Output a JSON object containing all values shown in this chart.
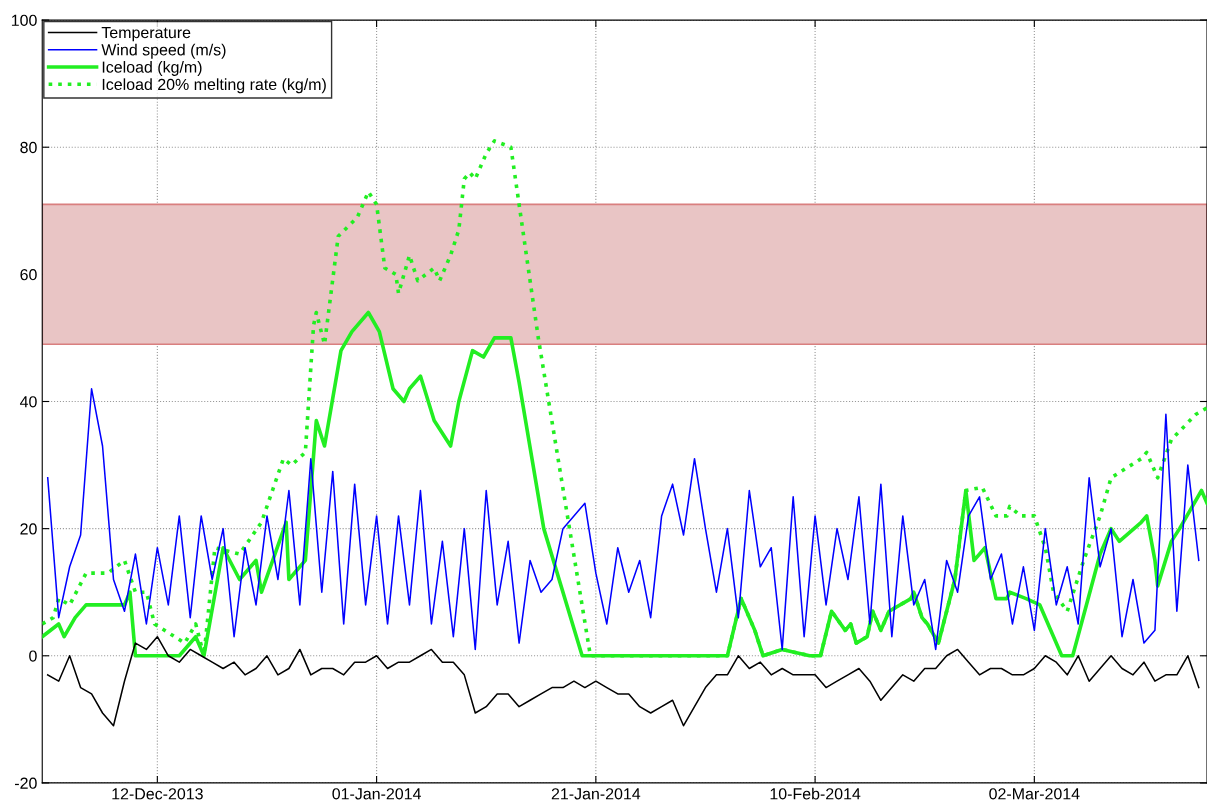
{
  "chart_data": {
    "type": "line",
    "xlim": [
      "2013-12-01T12:00",
      "2014-03-17T18:00"
    ],
    "xticks": [
      {
        "value": "2013-12-12",
        "label": "12-Dec-2013"
      },
      {
        "value": "2014-01-01",
        "label": "01-Jan-2014"
      },
      {
        "value": "2014-01-21",
        "label": "21-Jan-2014"
      },
      {
        "value": "2014-02-10",
        "label": "10-Feb-2014"
      },
      {
        "value": "2014-03-02",
        "label": "02-Mar-2014"
      }
    ],
    "ylim": [
      -20,
      100
    ],
    "yticks": [
      -20,
      0,
      20,
      40,
      60,
      80,
      100
    ],
    "grid": true,
    "legend": "top left",
    "bands": [
      {
        "axis": "y",
        "from": 49,
        "to": 71,
        "color": "#e9c5c5"
      }
    ],
    "x": [
      "2013-12-02",
      "2013-12-03",
      "2013-12-04",
      "2013-12-05",
      "2013-12-06",
      "2013-12-07",
      "2013-12-08",
      "2013-12-09",
      "2013-12-10",
      "2013-12-11",
      "2013-12-12",
      "2013-12-13",
      "2013-12-14",
      "2013-12-15",
      "2013-12-16",
      "2013-12-17",
      "2013-12-18",
      "2013-12-19",
      "2013-12-20",
      "2013-12-21",
      "2013-12-22",
      "2013-12-23",
      "2013-12-24",
      "2013-12-25",
      "2013-12-26",
      "2013-12-27",
      "2013-12-28",
      "2013-12-29",
      "2013-12-30",
      "2013-12-31",
      "2014-01-01",
      "2014-01-02",
      "2014-01-03",
      "2014-01-04",
      "2014-01-05",
      "2014-01-06",
      "2014-01-07",
      "2014-01-08",
      "2014-01-09",
      "2014-01-10",
      "2014-01-11",
      "2014-01-12",
      "2014-01-13",
      "2014-01-14",
      "2014-01-15",
      "2014-01-16",
      "2014-01-17",
      "2014-01-18",
      "2014-01-19",
      "2014-01-20",
      "2014-01-21",
      "2014-01-22",
      "2014-01-23",
      "2014-01-24",
      "2014-01-25",
      "2014-01-26",
      "2014-01-27",
      "2014-01-28",
      "2014-01-29",
      "2014-01-30",
      "2014-01-31",
      "2014-02-01",
      "2014-02-02",
      "2014-02-03",
      "2014-02-04",
      "2014-02-05",
      "2014-02-06",
      "2014-02-07",
      "2014-02-08",
      "2014-02-09",
      "2014-02-10",
      "2014-02-11",
      "2014-02-12",
      "2014-02-13",
      "2014-02-14",
      "2014-02-15",
      "2014-02-16",
      "2014-02-17",
      "2014-02-18",
      "2014-02-19",
      "2014-02-20",
      "2014-02-21",
      "2014-02-22",
      "2014-02-23",
      "2014-02-24",
      "2014-02-25",
      "2014-02-26",
      "2014-02-27",
      "2014-02-28",
      "2014-03-01",
      "2014-03-02",
      "2014-03-03",
      "2014-03-04",
      "2014-03-05",
      "2014-03-06",
      "2014-03-07",
      "2014-03-08",
      "2014-03-09",
      "2014-03-10",
      "2014-03-11",
      "2014-03-12",
      "2014-03-13",
      "2014-03-14",
      "2014-03-15",
      "2014-03-16",
      "2014-03-17"
    ],
    "series": [
      {
        "name": "Temperature",
        "color": "#000000",
        "line_style": "solid",
        "values": [
          -3,
          -4,
          0,
          -5,
          -6,
          -9,
          -11,
          -4,
          2,
          1,
          3,
          0,
          -1,
          1,
          0,
          -1,
          -2,
          -1,
          -3,
          -2,
          0,
          -3,
          -2,
          1,
          -3,
          -2,
          -2,
          -3,
          -1,
          -1,
          0,
          -2,
          -1,
          -1,
          0,
          1,
          -1,
          -1,
          -3,
          -9,
          -8,
          -6,
          -6,
          -8,
          -7,
          -6,
          -5,
          -5,
          -4,
          -5,
          -4,
          -5,
          -6,
          -6,
          -8,
          -9,
          -8,
          -7,
          -11,
          -8,
          -5,
          -3,
          -3,
          0,
          -2,
          -1,
          -3,
          -2,
          -3,
          -3,
          -3,
          -5,
          -4,
          -3,
          -2,
          -4,
          -7,
          -5,
          -3,
          -4,
          -2,
          -2,
          0,
          1,
          -1,
          -3,
          -2,
          -2,
          -3,
          -3,
          -2,
          0,
          -1,
          -3,
          0,
          -4,
          -2,
          0,
          -2,
          -3,
          -1,
          -4,
          -3,
          -3,
          0,
          -5
        ]
      },
      {
        "name": "Wind speed (m/s)",
        "color": "#0000ff",
        "line_style": "solid",
        "values": [
          28,
          6,
          14,
          19,
          42,
          33,
          12,
          7,
          16,
          5,
          17,
          8,
          22,
          6,
          22,
          12,
          20,
          3,
          17,
          8,
          22,
          12,
          26,
          8,
          31,
          10,
          29,
          5,
          27,
          8,
          22,
          5,
          22,
          8,
          26,
          5,
          18,
          3,
          20,
          1,
          26,
          8,
          18,
          2,
          15,
          10,
          12,
          20,
          22,
          24,
          13,
          5,
          17,
          10,
          15,
          6,
          22,
          27,
          19,
          31,
          20,
          10,
          20,
          6,
          26,
          14,
          17,
          1,
          25,
          3,
          22,
          8,
          20,
          12,
          25,
          5,
          27,
          3,
          22,
          8,
          12,
          1,
          15,
          10,
          22,
          25,
          12,
          16,
          5,
          14,
          4,
          20,
          8,
          14,
          5,
          28,
          14,
          20,
          3,
          12,
          2,
          4,
          38,
          7,
          30,
          15
        ]
      },
      {
        "name": "Iceload (kg/m)",
        "color": "#22ee22",
        "line_style": "solid",
        "x": [
          "2013-12-01T12:00",
          "2013-12-03",
          "2013-12-03T12:00",
          "2013-12-04T12:00",
          "2013-12-05T12:00",
          "2013-12-09",
          "2013-12-09T12:00",
          "2013-12-10",
          "2013-12-14",
          "2013-12-15T12:00",
          "2013-12-16T06:00",
          "2013-12-18",
          "2013-12-19T12:00",
          "2013-12-21",
          "2013-12-21T12:00",
          "2013-12-23T18:00",
          "2013-12-24",
          "2013-12-25T12:00",
          "2013-12-26T12:00",
          "2013-12-27T06:00",
          "2013-12-28T18:00",
          "2013-12-29T18:00",
          "2013-12-31T06:00",
          "2014-01-01T06:00",
          "2014-01-02T12:00",
          "2014-01-03T12:00",
          "2014-01-04",
          "2014-01-05",
          "2014-01-06T06:00",
          "2014-01-07T18:00",
          "2014-01-08T12:00",
          "2014-01-09T18:00",
          "2014-01-10T18:00",
          "2014-01-11T18:00",
          "2014-01-13T06:00",
          "2014-01-14",
          "2014-01-16T06:00",
          "2014-01-19T18:00",
          "2014-02-02",
          "2014-02-03T06:00",
          "2014-02-04T12:00",
          "2014-02-05T06:00",
          "2014-02-07",
          "2014-02-09T12:00",
          "2014-02-10T12:00",
          "2014-02-11T12:00",
          "2014-02-12T18:00",
          "2014-02-13T06:00",
          "2014-02-13T18:00",
          "2014-02-14T18:00",
          "2014-02-15T06:00",
          "2014-02-16",
          "2014-02-16T18:00",
          "2014-02-18T18:00",
          "2014-02-19",
          "2014-02-19T18:00",
          "2014-02-20T06:00",
          "2014-02-21T06:00",
          "2014-02-22T18:00",
          "2014-02-23T18:00",
          "2014-02-24T12:00",
          "2014-02-25T12:00",
          "2014-02-26T12:00",
          "2014-02-27T12:00",
          "2014-02-27T18:00",
          "2014-03-01T06:00",
          "2014-03-02T12:00",
          "2014-03-04T12:00",
          "2014-03-05T12:00",
          "2014-03-06T18:00",
          "2014-03-08",
          "2014-03-09",
          "2014-03-09T18:00",
          "2014-03-11T18:00",
          "2014-03-12T06:00",
          "2014-03-13",
          "2014-03-13T06:00",
          "2014-03-14T12:00",
          "2014-03-15T06:00",
          "2014-03-17T06:00",
          "2014-03-17T18:00"
        ],
        "values": [
          3,
          5,
          3,
          6,
          8,
          8,
          10,
          0,
          0,
          3,
          0,
          17,
          12,
          15,
          10,
          21,
          12,
          15,
          37,
          33,
          48,
          51,
          54,
          51,
          42,
          40,
          42,
          44,
          37,
          33,
          40,
          48,
          47,
          50,
          50,
          43,
          20,
          0,
          0,
          9,
          4,
          0,
          1,
          0,
          0,
          7,
          4,
          5,
          2,
          3,
          7,
          4,
          7,
          9,
          10,
          6,
          5,
          2,
          12,
          26,
          15,
          17,
          9,
          9,
          10,
          9,
          8,
          0,
          0,
          8,
          16,
          20,
          18,
          21,
          22,
          15,
          11,
          18,
          20,
          26,
          24
        ]
      },
      {
        "name": "Iceload 20% melting rate (kg/m)",
        "color": "#22ee22",
        "line_style": "dotted",
        "x": [
          "2013-12-01T12:00",
          "2013-12-02T12:00",
          "2013-12-03",
          "2013-12-04",
          "2013-12-05T12:00",
          "2013-12-07T12:00",
          "2013-12-09",
          "2013-12-10",
          "2013-12-11",
          "2013-12-11T18:00",
          "2013-12-14T12:00",
          "2013-12-15T12:00",
          "2013-12-16T06:00",
          "2013-12-17T06:00",
          "2013-12-19T12:00",
          "2013-12-21T12:00",
          "2013-12-23T12:00",
          "2013-12-24T06:00",
          "2013-12-25T12:00",
          "2013-12-26T06:00",
          "2013-12-26T12:00",
          "2013-12-27T06:00",
          "2013-12-28T12:00",
          "2013-12-30T06:00",
          "2013-12-31T06:00",
          "2014-01-01",
          "2014-01-01T18:00",
          "2014-01-02T18:00",
          "2014-01-03",
          "2014-01-04",
          "2014-01-04T18:00",
          "2014-01-05T12:00",
          "2014-01-06T06:00",
          "2014-01-06T18:00",
          "2014-01-07T18:00",
          "2014-01-08T12:00",
          "2014-01-09",
          "2014-01-09T12:00",
          "2014-01-10",
          "2014-01-11",
          "2014-01-11T18:00",
          "2014-01-13T06:00",
          "2014-01-14",
          "2014-01-15T18:00",
          "2014-01-20T12:00",
          "2014-02-02",
          "2014-02-03T06:00",
          "2014-02-04T12:00",
          "2014-02-05T06:00",
          "2014-02-07",
          "2014-02-09T12:00",
          "2014-02-10T12:00",
          "2014-02-11T12:00",
          "2014-02-12T18:00",
          "2014-02-13T06:00",
          "2014-02-13T18:00",
          "2014-02-14T18:00",
          "2014-02-15T06:00",
          "2014-02-16",
          "2014-02-16T18:00",
          "2014-02-18T18:00",
          "2014-02-19",
          "2014-02-19T18:00",
          "2014-02-20T06:00",
          "2014-02-21T06:00",
          "2014-02-22T18:00",
          "2014-02-23T18:00",
          "2014-02-25T06:00",
          "2014-02-26T12:00",
          "2014-02-27T12:00",
          "2014-02-27T18:00",
          "2014-02-28T18:00",
          "2014-03-02",
          "2014-03-03",
          "2014-03-03T18:00",
          "2014-03-05",
          "2014-03-06T12:00",
          "2014-03-08",
          "2014-03-09",
          "2014-03-11T18:00",
          "2014-03-12T06:00",
          "2014-03-13T06:00",
          "2014-03-14T12:00",
          "2014-03-16T18:00",
          "2014-03-17T18:00"
        ],
        "values": [
          5,
          6,
          9,
          8,
          13,
          13,
          15,
          10,
          10,
          5,
          2,
          5,
          0,
          17,
          16,
          21,
          31,
          30,
          32,
          52,
          54,
          49,
          66,
          69,
          73,
          71,
          61,
          60,
          57,
          63,
          59,
          60,
          61,
          59,
          63,
          67,
          75,
          76,
          75,
          79,
          81,
          80,
          71,
          50,
          0,
          0,
          9,
          4,
          0,
          1,
          0,
          0,
          7,
          4,
          5,
          2,
          3,
          7,
          4,
          7,
          9,
          10,
          6,
          5,
          2,
          12,
          26,
          26.5,
          22,
          22,
          23.5,
          22,
          22,
          17,
          10,
          7,
          15,
          22,
          28,
          31,
          32,
          28,
          34,
          38,
          39
        ]
      }
    ]
  }
}
